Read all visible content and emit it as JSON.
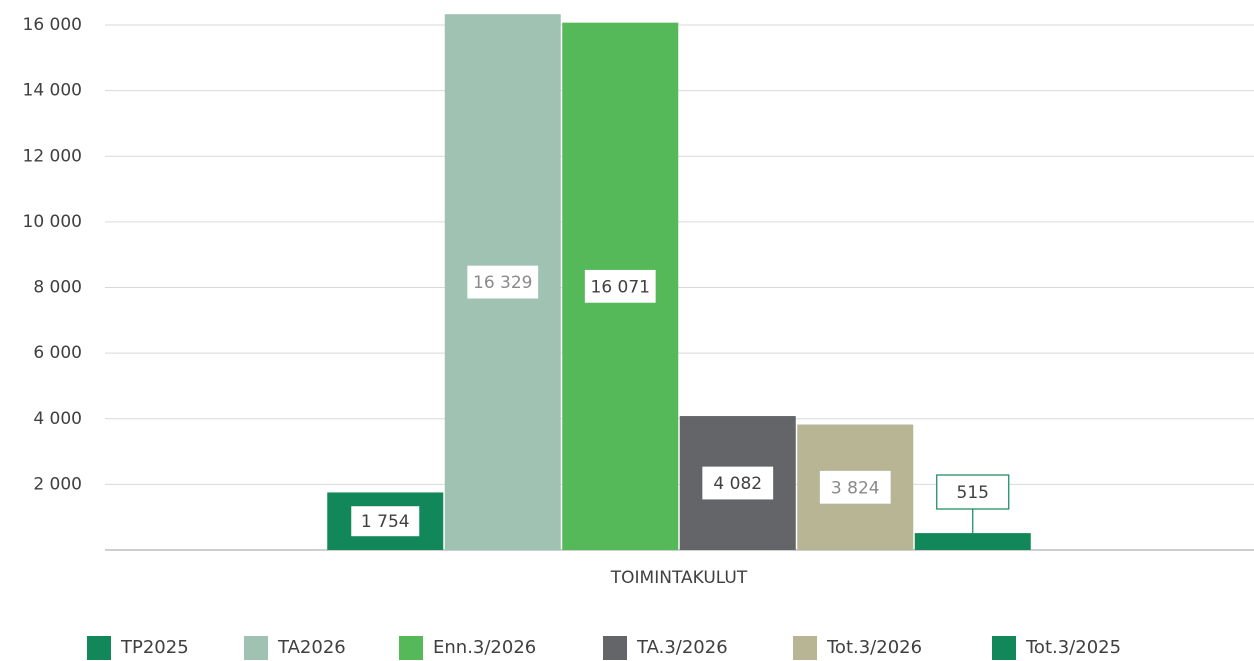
{
  "chart_data": {
    "type": "bar",
    "categories": [
      "TOIMINTAKULUT"
    ],
    "series": [
      {
        "name": "TP2025",
        "color": "#12875a",
        "values": [
          1754
        ],
        "value_labels": [
          "1 754"
        ]
      },
      {
        "name": "TA2026",
        "color": "#9fc2b3",
        "values": [
          16329
        ],
        "value_labels": [
          "16 329"
        ]
      },
      {
        "name": "Enn.3/2026",
        "color": "#55b95a",
        "values": [
          16071
        ],
        "value_labels": [
          "16 071"
        ]
      },
      {
        "name": "TA.3/2026",
        "color": "#636569",
        "values": [
          4082
        ],
        "value_labels": [
          "4 082"
        ]
      },
      {
        "name": "Tot.3/2026",
        "color": "#b8b595",
        "values": [
          3824
        ],
        "value_labels": [
          "3 824"
        ]
      },
      {
        "name": "Tot.3/2025",
        "color": "#12875a",
        "values": [
          515
        ],
        "value_labels": [
          "515"
        ]
      }
    ],
    "ylim": [
      0,
      16500
    ],
    "yticks": [
      {
        "value": 2000,
        "label": "2 000"
      },
      {
        "value": 4000,
        "label": "4 000"
      },
      {
        "value": 6000,
        "label": "6 000"
      },
      {
        "value": 8000,
        "label": "8 000"
      },
      {
        "value": 10000,
        "label": "10 000"
      },
      {
        "value": 12000,
        "label": "12 000"
      },
      {
        "value": 14000,
        "label": "14 000"
      },
      {
        "value": 16000,
        "label": "16 000"
      }
    ],
    "grid": true
  }
}
